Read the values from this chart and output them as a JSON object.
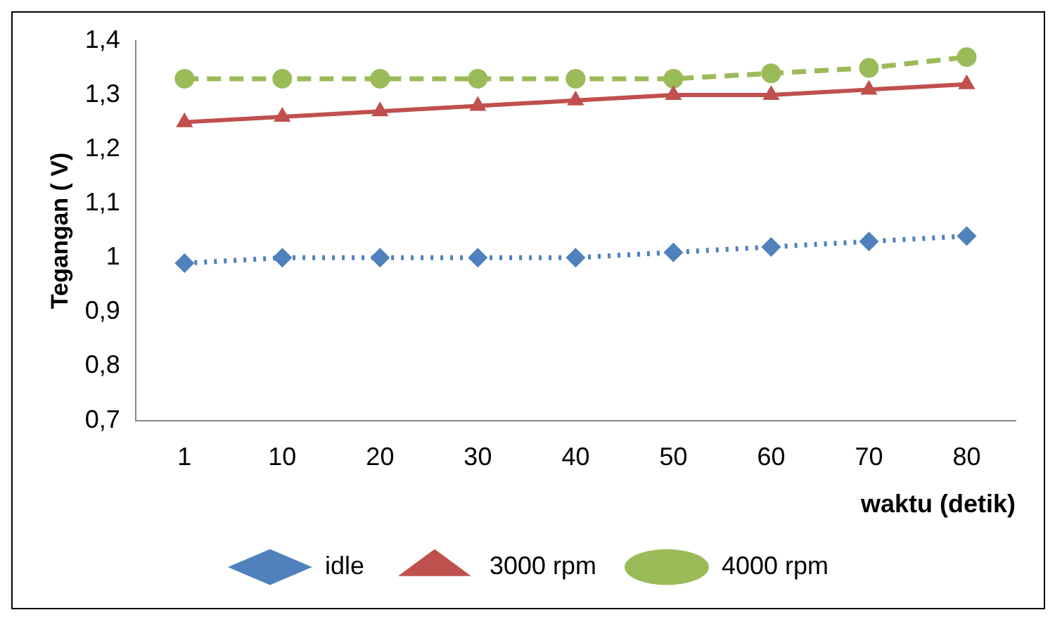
{
  "chart_data": {
    "type": "line",
    "ylabel": "Tegangan ( V)",
    "xlabel": "waktu (detik)",
    "categories": [
      "1",
      "10",
      "20",
      "30",
      "40",
      "50",
      "60",
      "70",
      "80"
    ],
    "ylim": [
      0.7,
      1.4
    ],
    "yticks": [
      {
        "value": 0.7,
        "label": "0,7"
      },
      {
        "value": 0.8,
        "label": "0,8"
      },
      {
        "value": 0.9,
        "label": "0,9"
      },
      {
        "value": 1,
        "label": "1"
      },
      {
        "value": 1.1,
        "label": "1,1"
      },
      {
        "value": 1.2,
        "label": "1,2"
      },
      {
        "value": 1.3,
        "label": "1,3"
      },
      {
        "value": 1.4,
        "label": "1,4"
      }
    ],
    "grid": false,
    "legend": "bottom",
    "series": [
      {
        "name": "idle",
        "color": "#4f81bd",
        "marker": "diamond",
        "line_style": "dotted",
        "values": [
          0.99,
          1.0,
          1.0,
          1.0,
          1.0,
          1.01,
          1.02,
          1.03,
          1.04
        ]
      },
      {
        "name": "3000 rpm",
        "color": "#c0504d",
        "marker": "triangle",
        "line_style": "solid",
        "values": [
          1.25,
          1.26,
          1.27,
          1.28,
          1.29,
          1.3,
          1.3,
          1.31,
          1.32
        ]
      },
      {
        "name": "4000 rpm",
        "color": "#9bbb59",
        "marker": "circle",
        "line_style": "dashed",
        "values": [
          1.33,
          1.33,
          1.33,
          1.33,
          1.33,
          1.33,
          1.34,
          1.35,
          1.37
        ]
      }
    ]
  }
}
